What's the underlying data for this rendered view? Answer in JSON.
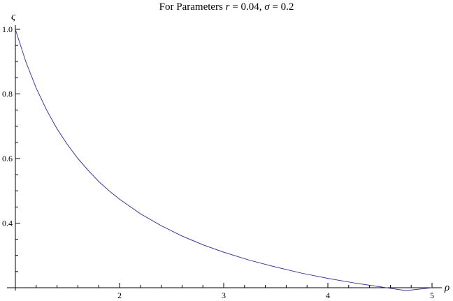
{
  "title": {
    "prefix": "For Parameters ",
    "r_symbol": "r",
    "r_value": " = 0.04, ",
    "sigma_symbol": "σ",
    "sigma_value": " = 0.2"
  },
  "chart_data": {
    "type": "line",
    "title": "For Parameters r = 0.04, σ = 0.2",
    "xlabel": "ρ",
    "ylabel": "ς",
    "xlim": [
      1,
      5
    ],
    "ylim": [
      0.2,
      1.0
    ],
    "x_ticks_major": [
      2,
      3,
      4,
      5
    ],
    "y_ticks_major": [
      0.4,
      0.6,
      0.8,
      1.0
    ],
    "x_tick_labels": [
      "2",
      "3",
      "4",
      "5"
    ],
    "y_tick_labels": [
      "0.4",
      "0.6",
      "0.8",
      "1.0"
    ],
    "grid": false,
    "line_color": "#3b3b9a",
    "series": [
      {
        "x": [
          1.0,
          1.1,
          1.2,
          1.3,
          1.4,
          1.5,
          1.6,
          1.7,
          1.8,
          1.9,
          2.0,
          2.2,
          2.4,
          2.6,
          2.8,
          3.0,
          3.25,
          3.5,
          3.75,
          4.0,
          4.25,
          4.5,
          4.75,
          5.0
        ],
        "y": [
          1.0,
          0.9,
          0.818,
          0.75,
          0.692,
          0.643,
          0.6,
          0.563,
          0.529,
          0.5,
          0.474,
          0.429,
          0.392,
          0.36,
          0.333,
          0.31,
          0.285,
          0.264,
          0.245,
          0.229,
          0.215,
          0.203,
          0.191,
          0.2
        ]
      }
    ]
  }
}
